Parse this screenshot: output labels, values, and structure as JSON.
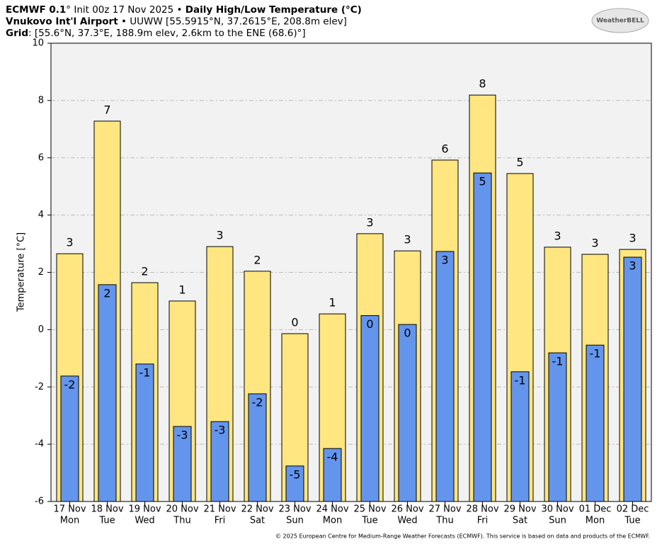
{
  "chart_data": {
    "type": "bar",
    "title_lines": [
      [
        {
          "text": "ECMWF 0.1",
          "bold": true
        },
        {
          "text": "° Init 00z 17 Nov 2025 • ",
          "bold": false
        },
        {
          "text": "Daily High/Low Temperature (°C)",
          "bold": true
        }
      ],
      [
        {
          "text": "Vnukovo Int'l Airport",
          "bold": true
        },
        {
          "text": " • UUWW [55.5915°N, 37.2615°E, 208.8m elev]",
          "bold": false
        }
      ],
      [
        {
          "text": "Grid",
          "bold": true
        },
        {
          "text": ": [55.6°N, 37.3°E, 188.9m elev, 2.6km to the ENE (68.6)°]",
          "bold": false
        }
      ]
    ],
    "logo": "WeatherBELL",
    "ylabel": "Temperature [°C]",
    "footer": "© 2025 European Centre for Medium-Range Weather Forecasts (ECMWF). This service is based on data and products of the ECMWF.",
    "categories": [
      "17 Nov",
      "18 Nov",
      "19 Nov",
      "20 Nov",
      "21 Nov",
      "22 Nov",
      "23 Nov",
      "24 Nov",
      "25 Nov",
      "26 Nov",
      "27 Nov",
      "28 Nov",
      "29 Nov",
      "30 Nov",
      "01 Dec",
      "02 Dec"
    ],
    "weekdays": [
      "Mon",
      "Tue",
      "Wed",
      "Thu",
      "Fri",
      "Sat",
      "Sun",
      "Mon",
      "Tue",
      "Wed",
      "Thu",
      "Fri",
      "Sat",
      "Sun",
      "Mon",
      "Tue"
    ],
    "series": [
      {
        "color": "#ffe680",
        "values": [
          2.65,
          7.28,
          1.64,
          1.0,
          2.9,
          2.04,
          -0.14,
          0.55,
          3.35,
          2.75,
          5.92,
          8.19,
          5.45,
          2.88,
          2.63,
          2.8
        ],
        "value_labels": [
          "3",
          "7",
          "2",
          "1",
          "3",
          "2",
          "0",
          "1",
          "3",
          "3",
          "6",
          "8",
          "5",
          "3",
          "3",
          "3"
        ]
      },
      {
        "color": "#6495ed",
        "values": [
          -1.62,
          1.57,
          -1.2,
          -3.38,
          -3.21,
          -2.24,
          -4.76,
          -4.15,
          0.49,
          0.18,
          2.73,
          5.47,
          -1.47,
          -0.81,
          -0.54,
          2.53
        ],
        "value_labels": [
          "-2",
          "2",
          "-1",
          "-3",
          "-3",
          "-2",
          "-5",
          "-4",
          "0",
          "0",
          "3",
          "5",
          "-1",
          "-1",
          "-1",
          "3"
        ]
      }
    ],
    "ylim": [
      -6,
      10
    ],
    "yticks": [
      -6,
      -4,
      -2,
      0,
      2,
      4,
      6,
      8,
      10
    ],
    "grid": true
  }
}
